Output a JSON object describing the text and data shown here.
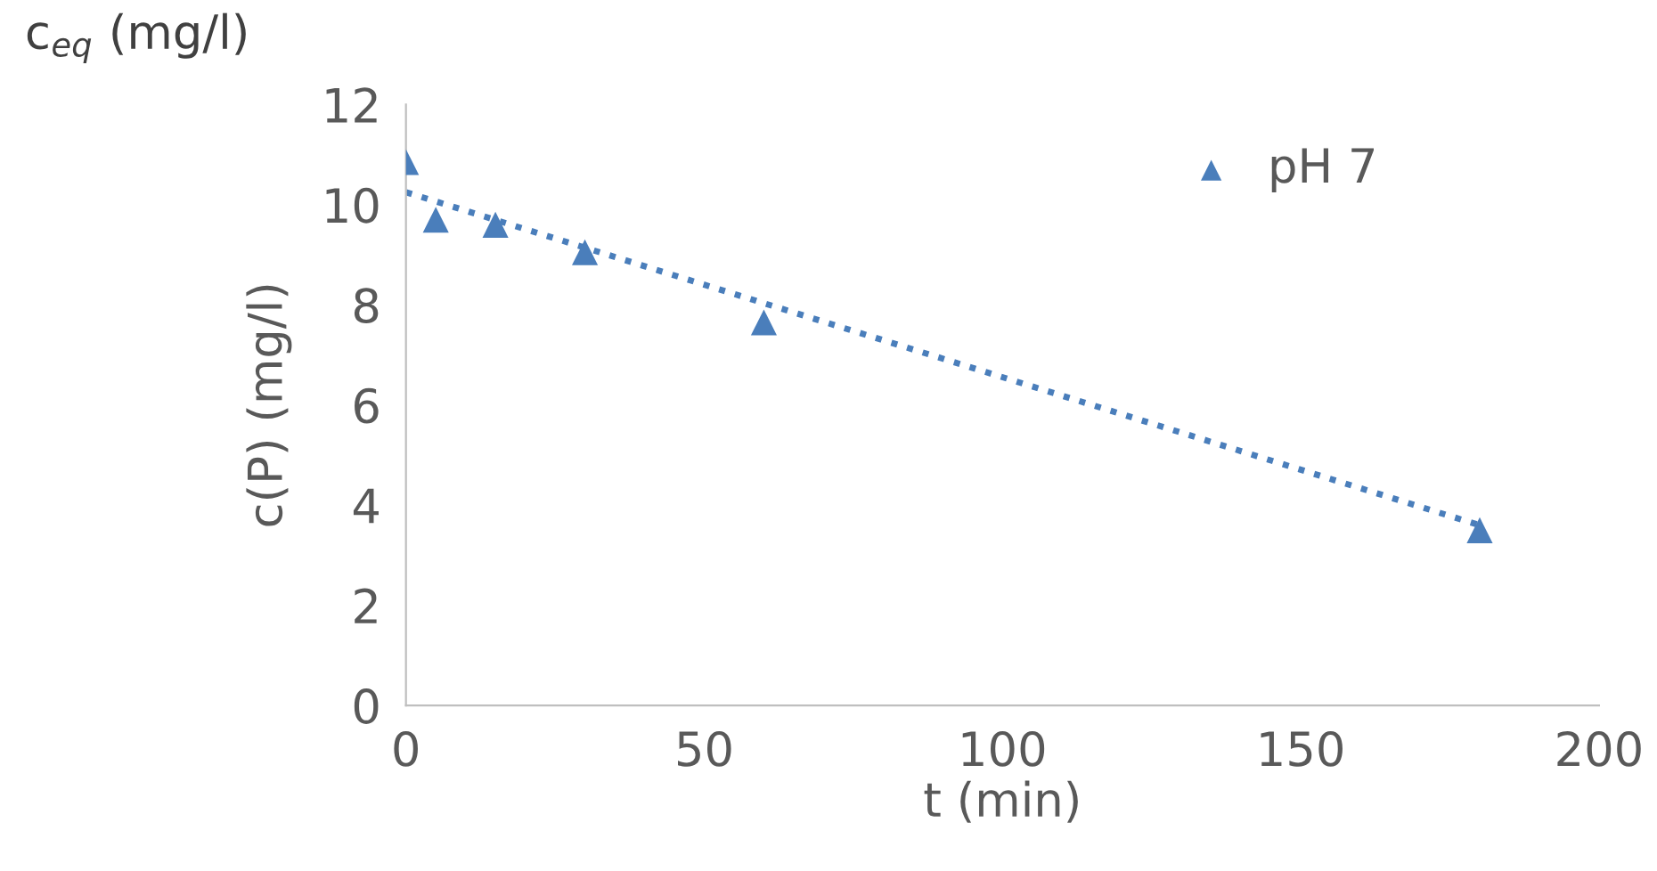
{
  "chart_data": {
    "type": "scatter",
    "xlabel": "t (min)",
    "ylabel": "c(P) (mg/l)",
    "annotations": [
      "c$_{eq}$ (mg/l)"
    ],
    "xlim": [
      0,
      200
    ],
    "xticks": [
      0,
      50,
      100,
      150,
      200
    ],
    "ylim": [
      0,
      12
    ],
    "yticks": [
      0,
      2,
      4,
      6,
      8,
      10,
      12
    ],
    "grid": false,
    "legend": "top right",
    "series": [
      {
        "name": "pH 7",
        "color": "#4a7ebb",
        "marker": "triangle",
        "x": [
          0,
          5,
          15,
          30,
          60,
          180
        ],
        "values": [
          10.85,
          9.7,
          9.6,
          9.05,
          7.65,
          3.5
        ]
      },
      {
        "type": "line",
        "color": "#4a7ebb",
        "line_style": "dotted",
        "marker": "none",
        "x": [
          0,
          180
        ],
        "values": [
          10.25,
          3.6
        ]
      }
    ]
  }
}
